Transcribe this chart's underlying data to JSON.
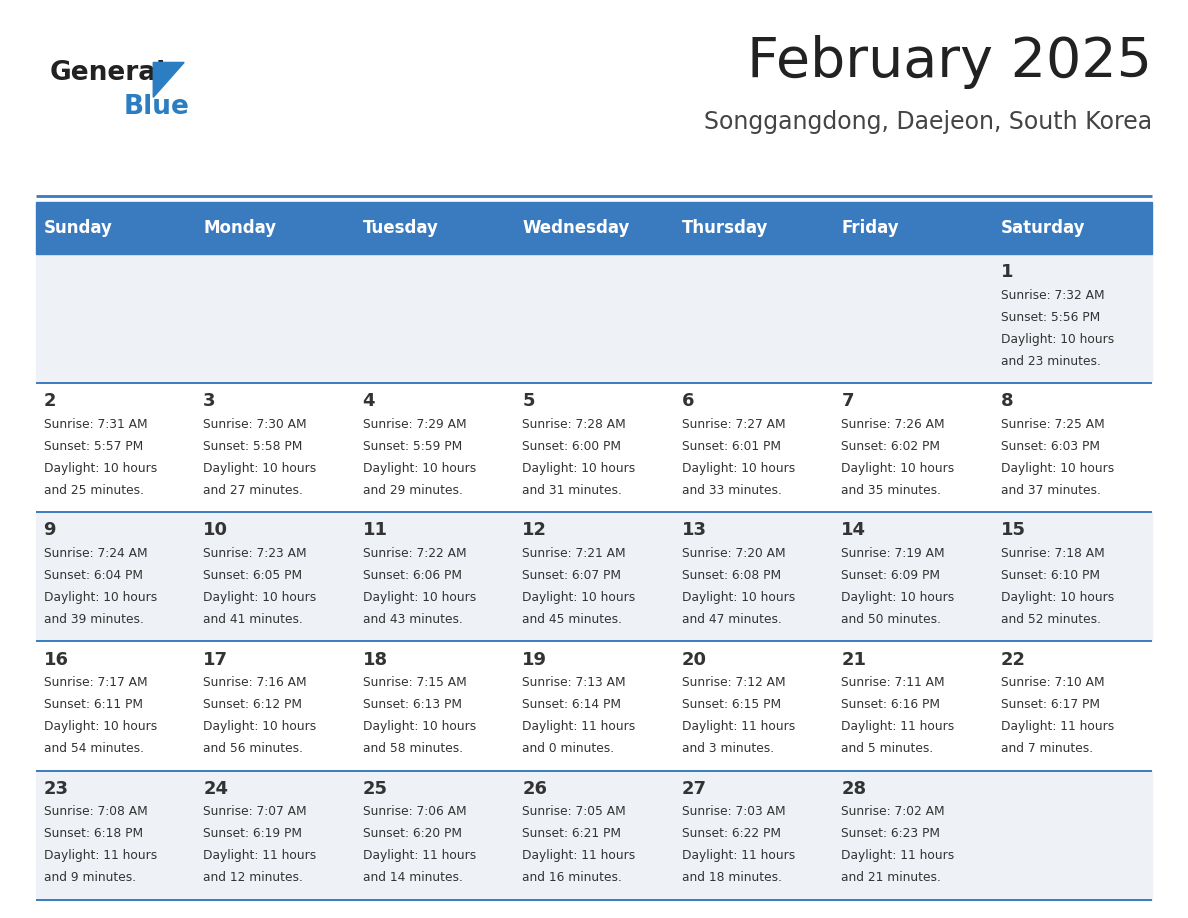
{
  "title": "February 2025",
  "subtitle": "Songgangdong, Daejeon, South Korea",
  "header_bg_color": "#3a7bbf",
  "header_text_color": "#ffffff",
  "cell_bg_even": "#eef2f7",
  "cell_bg_odd": "#ffffff",
  "border_color": "#3a7bbf",
  "title_color": "#222222",
  "subtitle_color": "#444444",
  "day_number_color": "#333333",
  "cell_text_color": "#333333",
  "days_of_week": [
    "Sunday",
    "Monday",
    "Tuesday",
    "Wednesday",
    "Thursday",
    "Friday",
    "Saturday"
  ],
  "logo_text1": "General",
  "logo_text2": "Blue",
  "logo_color1": "#222222",
  "logo_color2": "#2b7ec1",
  "weeks": [
    [
      {
        "day": "",
        "sunrise": "",
        "sunset": "",
        "daylight": ""
      },
      {
        "day": "",
        "sunrise": "",
        "sunset": "",
        "daylight": ""
      },
      {
        "day": "",
        "sunrise": "",
        "sunset": "",
        "daylight": ""
      },
      {
        "day": "",
        "sunrise": "",
        "sunset": "",
        "daylight": ""
      },
      {
        "day": "",
        "sunrise": "",
        "sunset": "",
        "daylight": ""
      },
      {
        "day": "",
        "sunrise": "",
        "sunset": "",
        "daylight": ""
      },
      {
        "day": "1",
        "sunrise": "7:32 AM",
        "sunset": "5:56 PM",
        "daylight": "10 hours\nand 23 minutes."
      }
    ],
    [
      {
        "day": "2",
        "sunrise": "7:31 AM",
        "sunset": "5:57 PM",
        "daylight": "10 hours\nand 25 minutes."
      },
      {
        "day": "3",
        "sunrise": "7:30 AM",
        "sunset": "5:58 PM",
        "daylight": "10 hours\nand 27 minutes."
      },
      {
        "day": "4",
        "sunrise": "7:29 AM",
        "sunset": "5:59 PM",
        "daylight": "10 hours\nand 29 minutes."
      },
      {
        "day": "5",
        "sunrise": "7:28 AM",
        "sunset": "6:00 PM",
        "daylight": "10 hours\nand 31 minutes."
      },
      {
        "day": "6",
        "sunrise": "7:27 AM",
        "sunset": "6:01 PM",
        "daylight": "10 hours\nand 33 minutes."
      },
      {
        "day": "7",
        "sunrise": "7:26 AM",
        "sunset": "6:02 PM",
        "daylight": "10 hours\nand 35 minutes."
      },
      {
        "day": "8",
        "sunrise": "7:25 AM",
        "sunset": "6:03 PM",
        "daylight": "10 hours\nand 37 minutes."
      }
    ],
    [
      {
        "day": "9",
        "sunrise": "7:24 AM",
        "sunset": "6:04 PM",
        "daylight": "10 hours\nand 39 minutes."
      },
      {
        "day": "10",
        "sunrise": "7:23 AM",
        "sunset": "6:05 PM",
        "daylight": "10 hours\nand 41 minutes."
      },
      {
        "day": "11",
        "sunrise": "7:22 AM",
        "sunset": "6:06 PM",
        "daylight": "10 hours\nand 43 minutes."
      },
      {
        "day": "12",
        "sunrise": "7:21 AM",
        "sunset": "6:07 PM",
        "daylight": "10 hours\nand 45 minutes."
      },
      {
        "day": "13",
        "sunrise": "7:20 AM",
        "sunset": "6:08 PM",
        "daylight": "10 hours\nand 47 minutes."
      },
      {
        "day": "14",
        "sunrise": "7:19 AM",
        "sunset": "6:09 PM",
        "daylight": "10 hours\nand 50 minutes."
      },
      {
        "day": "15",
        "sunrise": "7:18 AM",
        "sunset": "6:10 PM",
        "daylight": "10 hours\nand 52 minutes."
      }
    ],
    [
      {
        "day": "16",
        "sunrise": "7:17 AM",
        "sunset": "6:11 PM",
        "daylight": "10 hours\nand 54 minutes."
      },
      {
        "day": "17",
        "sunrise": "7:16 AM",
        "sunset": "6:12 PM",
        "daylight": "10 hours\nand 56 minutes."
      },
      {
        "day": "18",
        "sunrise": "7:15 AM",
        "sunset": "6:13 PM",
        "daylight": "10 hours\nand 58 minutes."
      },
      {
        "day": "19",
        "sunrise": "7:13 AM",
        "sunset": "6:14 PM",
        "daylight": "11 hours\nand 0 minutes."
      },
      {
        "day": "20",
        "sunrise": "7:12 AM",
        "sunset": "6:15 PM",
        "daylight": "11 hours\nand 3 minutes."
      },
      {
        "day": "21",
        "sunrise": "7:11 AM",
        "sunset": "6:16 PM",
        "daylight": "11 hours\nand 5 minutes."
      },
      {
        "day": "22",
        "sunrise": "7:10 AM",
        "sunset": "6:17 PM",
        "daylight": "11 hours\nand 7 minutes."
      }
    ],
    [
      {
        "day": "23",
        "sunrise": "7:08 AM",
        "sunset": "6:18 PM",
        "daylight": "11 hours\nand 9 minutes."
      },
      {
        "day": "24",
        "sunrise": "7:07 AM",
        "sunset": "6:19 PM",
        "daylight": "11 hours\nand 12 minutes."
      },
      {
        "day": "25",
        "sunrise": "7:06 AM",
        "sunset": "6:20 PM",
        "daylight": "11 hours\nand 14 minutes."
      },
      {
        "day": "26",
        "sunrise": "7:05 AM",
        "sunset": "6:21 PM",
        "daylight": "11 hours\nand 16 minutes."
      },
      {
        "day": "27",
        "sunrise": "7:03 AM",
        "sunset": "6:22 PM",
        "daylight": "11 hours\nand 18 minutes."
      },
      {
        "day": "28",
        "sunrise": "7:02 AM",
        "sunset": "6:23 PM",
        "daylight": "11 hours\nand 21 minutes."
      },
      {
        "day": "",
        "sunrise": "",
        "sunset": "",
        "daylight": ""
      }
    ]
  ]
}
